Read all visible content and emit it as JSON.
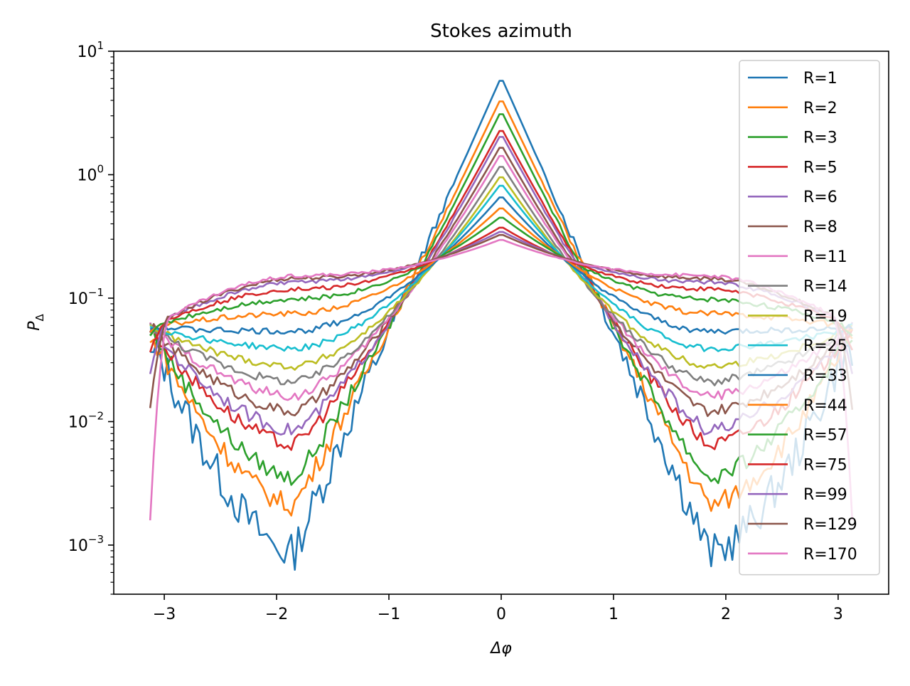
{
  "chart_data": {
    "type": "line",
    "title": "Stokes azimuth",
    "xlabel": "Δφ",
    "ylabel_main": "P",
    "ylabel_sub": "Δ",
    "xlim": [
      -3.45,
      3.45
    ],
    "ylim": [
      0.0004,
      10
    ],
    "yscale": "log",
    "grid": false,
    "legend_position": "top-right",
    "x_ticks": [
      -3,
      -2,
      -1,
      0,
      1,
      2,
      3
    ],
    "x_tick_labels": [
      "−3",
      "−2",
      "−1",
      "0",
      "1",
      "2",
      "3"
    ],
    "y_ticks": [
      0.001,
      0.01,
      0.1,
      1,
      10
    ],
    "y_tick_labels": [
      {
        "base": "10",
        "exp": "−3"
      },
      {
        "base": "10",
        "exp": "−2"
      },
      {
        "base": "10",
        "exp": "−1"
      },
      {
        "base": "10",
        "exp": "0"
      },
      {
        "base": "10",
        "exp": "1"
      }
    ],
    "series": [
      {
        "name": "R=1",
        "color": "#1f77b4",
        "peak": 6.2,
        "min": 0.00085,
        "edge": 0.028,
        "noise": 0.32
      },
      {
        "name": "R=2",
        "color": "#ff7f0e",
        "peak": 4.2,
        "min": 0.0021,
        "edge": 0.04,
        "noise": 0.18
      },
      {
        "name": "R=3",
        "color": "#2ca02c",
        "peak": 3.3,
        "min": 0.0035,
        "edge": 0.05,
        "noise": 0.14
      },
      {
        "name": "R=5",
        "color": "#d62728",
        "peak": 2.4,
        "min": 0.0065,
        "edge": 0.055,
        "noise": 0.12
      },
      {
        "name": "R=6",
        "color": "#9467bd",
        "peak": 2.15,
        "min": 0.0085,
        "edge": 0.057,
        "noise": 0.11
      },
      {
        "name": "R=8",
        "color": "#8c564b",
        "peak": 1.75,
        "min": 0.012,
        "edge": 0.058,
        "noise": 0.09
      },
      {
        "name": "R=11",
        "color": "#e377c2",
        "peak": 1.5,
        "min": 0.016,
        "edge": 0.059,
        "noise": 0.08
      },
      {
        "name": "R=14",
        "color": "#7f7f7f",
        "peak": 1.22,
        "min": 0.021,
        "edge": 0.06,
        "noise": 0.07
      },
      {
        "name": "R=19",
        "color": "#bcbd22",
        "peak": 1.0,
        "min": 0.028,
        "edge": 0.06,
        "noise": 0.06
      },
      {
        "name": "R=25",
        "color": "#17becf",
        "peak": 0.85,
        "min": 0.039,
        "edge": 0.059,
        "noise": 0.05
      },
      {
        "name": "R=33",
        "color": "#1f77b4",
        "peak": 0.68,
        "min": 0.054,
        "edge": 0.057,
        "noise": 0.05
      },
      {
        "name": "R=44",
        "color": "#ff7f0e",
        "peak": 0.55,
        "min": 0.075,
        "edge": 0.054,
        "noise": 0.045
      },
      {
        "name": "R=57",
        "color": "#2ca02c",
        "peak": 0.46,
        "min": 0.098,
        "edge": 0.05,
        "noise": 0.04
      },
      {
        "name": "R=75",
        "color": "#d62728",
        "peak": 0.38,
        "min": 0.118,
        "edge": 0.035,
        "noise": 0.035
      },
      {
        "name": "R=99",
        "color": "#9467bd",
        "peak": 0.35,
        "min": 0.135,
        "edge": 0.02,
        "noise": 0.03
      },
      {
        "name": "R=129",
        "color": "#8c564b",
        "peak": 0.33,
        "min": 0.145,
        "edge": 0.0095,
        "noise": 0.03
      },
      {
        "name": "R=170",
        "color": "#e377c2",
        "peak": 0.3,
        "min": 0.152,
        "edge": 0.0008,
        "noise": 0.03
      }
    ]
  }
}
